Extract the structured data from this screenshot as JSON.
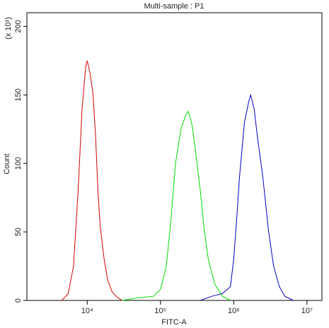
{
  "chart_data": {
    "type": "line",
    "title": "Multi-sample : P1",
    "x_label": "FITC-A",
    "y_label": "Count",
    "y_unit_label": "(x 10¹)",
    "xscale": "log",
    "xlim": [
      1500,
      16000000
    ],
    "xticks": [
      {
        "value": 10000,
        "label": "10⁴"
      },
      {
        "value": 100000,
        "label": "10⁵"
      },
      {
        "value": 1000000,
        "label": "10⁶"
      },
      {
        "value": 10000000,
        "label": "10⁷"
      }
    ],
    "ylim": [
      0,
      210
    ],
    "yticks": [
      0,
      50,
      100,
      150,
      200
    ],
    "series": [
      {
        "color": "#d40000",
        "x": [
          4500,
          5500,
          6500,
          7500,
          8500,
          9500,
          10000,
          11000,
          12000,
          13000,
          14000,
          15000,
          17000,
          19000,
          22000,
          26000,
          30000
        ],
        "values": [
          0,
          5,
          25,
          80,
          140,
          170,
          175,
          165,
          150,
          120,
          80,
          55,
          30,
          15,
          6,
          2,
          0
        ]
      },
      {
        "color": "#00dd00",
        "x": [
          30000,
          50000,
          80000,
          100000,
          120000,
          140000,
          160000,
          190000,
          220000,
          240000,
          270000,
          300000,
          350000,
          400000,
          450000,
          550000,
          700000,
          900000
        ],
        "values": [
          0,
          2,
          3,
          8,
          25,
          60,
          100,
          125,
          135,
          138,
          128,
          110,
          80,
          50,
          30,
          12,
          3,
          0
        ]
      },
      {
        "color": "#0000c0",
        "x": [
          350000,
          500000,
          700000,
          900000,
          1000000,
          1100000,
          1200000,
          1400000,
          1600000,
          1700000,
          1900000,
          2100000,
          2500000,
          3000000,
          3500000,
          4200000,
          5000000,
          6500000
        ],
        "values": [
          0,
          3,
          5,
          10,
          30,
          60,
          90,
          130,
          145,
          150,
          140,
          120,
          90,
          50,
          25,
          10,
          3,
          0
        ]
      }
    ]
  }
}
